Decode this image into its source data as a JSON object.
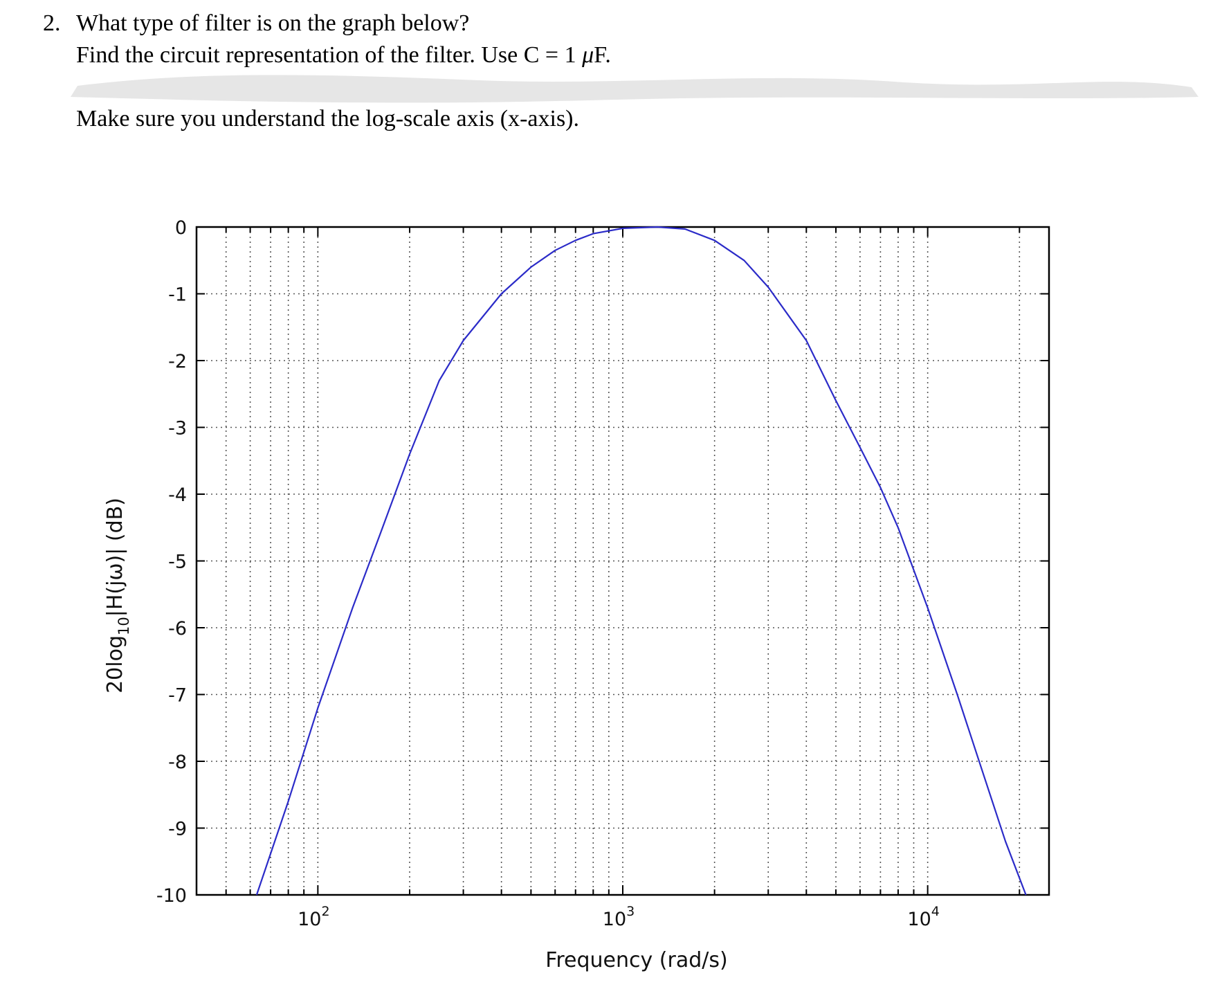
{
  "question": {
    "number": "2.",
    "title": "What type of filter is on the graph below?",
    "sub_before": "Find the circuit representation of the filter. Use C = 1 ",
    "sub_unit_mu": "μ",
    "sub_after": "F.",
    "note": "Make sure you understand the log-scale axis (x-axis)."
  },
  "colors": {
    "curve": "#2b2bc8",
    "grid": "#555555",
    "redaction": "#e6e6e6"
  },
  "chart_data": {
    "type": "line",
    "xlabel": "Frequency (rad/s)",
    "ylabel_parts": {
      "pre": "20log",
      "sub": "10",
      "post": "|H(jω)| (dB)"
    },
    "x_scale": "log",
    "xlim": [
      40,
      25000
    ],
    "ylim": [
      -10,
      0
    ],
    "x_ticks": [
      {
        "base": "10",
        "exp": "2",
        "value": 100
      },
      {
        "base": "10",
        "exp": "3",
        "value": 1000
      },
      {
        "base": "10",
        "exp": "4",
        "value": 10000
      }
    ],
    "y_ticks": [
      "0",
      "-1",
      "-2",
      "-3",
      "-4",
      "-5",
      "-6",
      "-7",
      "-8",
      "-9",
      "-10"
    ],
    "y_tick_values": [
      0,
      -1,
      -2,
      -3,
      -4,
      -5,
      -6,
      -7,
      -8,
      -9,
      -10
    ],
    "grid": true,
    "series": [
      {
        "x": [
          63,
          80,
          100,
          130,
          160,
          200,
          250,
          300,
          400,
          500,
          600,
          700,
          800,
          1000,
          1300,
          1600,
          2000,
          2500,
          3000,
          4000,
          5000,
          6000,
          7000,
          8000,
          10000,
          12500,
          15000,
          18000,
          21000
        ],
        "y": [
          -10.0,
          -8.6,
          -7.2,
          -5.7,
          -4.6,
          -3.4,
          -2.3,
          -1.7,
          -1.0,
          -0.6,
          -0.35,
          -0.2,
          -0.1,
          -0.02,
          0.0,
          -0.03,
          -0.2,
          -0.5,
          -0.9,
          -1.7,
          -2.6,
          -3.3,
          -3.9,
          -4.5,
          -5.7,
          -7.0,
          -8.1,
          -9.2,
          -10.0
        ]
      }
    ]
  }
}
